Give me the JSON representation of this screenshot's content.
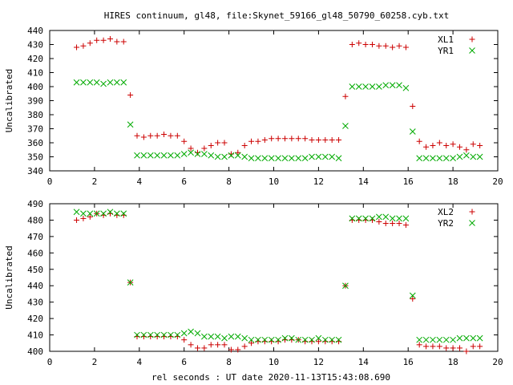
{
  "title": "HIRES continuum, gl48, file:Skynet_59166_gl48_50790_60258.cyb.txt",
  "xlabel": "rel seconds : UT date 2020-11-13T15:43:08.690",
  "chart_data": [
    {
      "type": "scatter",
      "ylabel": "Uncalibrated",
      "xlim": [
        0,
        20
      ],
      "ylim": [
        340,
        440
      ],
      "xticks": [
        "0",
        "2",
        "4",
        "6",
        "8",
        "10",
        "12",
        "14",
        "16",
        "18",
        "20"
      ],
      "yticks": [
        "340",
        "350",
        "360",
        "370",
        "380",
        "390",
        "400",
        "410",
        "420",
        "430",
        "440"
      ],
      "legend_position": "top-right",
      "series": [
        {
          "name": "XL1",
          "color": "#cc0000",
          "marker": "plus",
          "x": [
            1.2,
            1.5,
            1.8,
            2.1,
            2.4,
            2.7,
            3.0,
            3.3,
            3.6,
            3.9,
            4.2,
            4.5,
            4.8,
            5.1,
            5.4,
            5.7,
            6.0,
            6.3,
            6.6,
            6.9,
            7.2,
            7.5,
            7.8,
            8.1,
            8.4,
            8.7,
            9.0,
            9.3,
            9.6,
            9.9,
            10.2,
            10.5,
            10.8,
            11.1,
            11.4,
            11.7,
            12.0,
            12.3,
            12.6,
            12.9,
            13.2,
            13.5,
            13.8,
            14.1,
            14.4,
            14.7,
            15.0,
            15.3,
            15.6,
            15.9,
            16.2,
            16.5,
            16.8,
            17.1,
            17.4,
            17.7,
            18.0,
            18.3,
            18.6,
            18.9,
            19.2
          ],
          "y": [
            428,
            429,
            431,
            433,
            433,
            434,
            432,
            432,
            394,
            365,
            364,
            365,
            365,
            366,
            365,
            365,
            361,
            356,
            353,
            356,
            358,
            360,
            360,
            352,
            353,
            358,
            361,
            361,
            362,
            363,
            363,
            363,
            363,
            363,
            363,
            362,
            362,
            362,
            362,
            362,
            393,
            430,
            431,
            430,
            430,
            429,
            429,
            428,
            429,
            428,
            386,
            361,
            357,
            358,
            360,
            358,
            359,
            357,
            355,
            359,
            358
          ]
        },
        {
          "name": "YR1",
          "color": "#00aa00",
          "marker": "cross",
          "x": [
            1.2,
            1.5,
            1.8,
            2.1,
            2.4,
            2.7,
            3.0,
            3.3,
            3.6,
            3.9,
            4.2,
            4.5,
            4.8,
            5.1,
            5.4,
            5.7,
            6.0,
            6.3,
            6.6,
            6.9,
            7.2,
            7.5,
            7.8,
            8.1,
            8.4,
            8.7,
            9.0,
            9.3,
            9.6,
            9.9,
            10.2,
            10.5,
            10.8,
            11.1,
            11.4,
            11.7,
            12.0,
            12.3,
            12.6,
            12.9,
            13.2,
            13.5,
            13.8,
            14.1,
            14.4,
            14.7,
            15.0,
            15.3,
            15.6,
            15.9,
            16.2,
            16.5,
            16.8,
            17.1,
            17.4,
            17.7,
            18.0,
            18.3,
            18.6,
            18.9,
            19.2
          ],
          "y": [
            403,
            403,
            403,
            403,
            402,
            403,
            403,
            403,
            373,
            351,
            351,
            351,
            351,
            351,
            351,
            351,
            352,
            353,
            352,
            352,
            351,
            350,
            350,
            351,
            351,
            350,
            349,
            349,
            349,
            349,
            349,
            349,
            349,
            349,
            349,
            350,
            350,
            350,
            350,
            349,
            372,
            400,
            400,
            400,
            400,
            400,
            401,
            401,
            401,
            399,
            368,
            349,
            349,
            349,
            349,
            349,
            349,
            350,
            351,
            350,
            350
          ]
        }
      ]
    },
    {
      "type": "scatter",
      "ylabel": "Uncalibrated",
      "xlim": [
        0,
        20
      ],
      "ylim": [
        400,
        490
      ],
      "xticks": [
        "0",
        "2",
        "4",
        "6",
        "8",
        "10",
        "12",
        "14",
        "16",
        "18",
        "20"
      ],
      "yticks": [
        "400",
        "410",
        "420",
        "430",
        "440",
        "450",
        "460",
        "470",
        "480",
        "490"
      ],
      "legend_position": "top-right",
      "series": [
        {
          "name": "XL2",
          "color": "#cc0000",
          "marker": "plus",
          "x": [
            1.2,
            1.5,
            1.8,
            2.1,
            2.4,
            2.7,
            3.0,
            3.3,
            3.6,
            3.9,
            4.2,
            4.5,
            4.8,
            5.1,
            5.4,
            5.7,
            6.0,
            6.3,
            6.6,
            6.9,
            7.2,
            7.5,
            7.8,
            8.1,
            8.4,
            8.7,
            9.0,
            9.3,
            9.6,
            9.9,
            10.2,
            10.5,
            10.8,
            11.1,
            11.4,
            11.7,
            12.0,
            12.3,
            12.6,
            12.9,
            13.2,
            13.5,
            13.8,
            14.1,
            14.4,
            14.7,
            15.0,
            15.3,
            15.6,
            15.9,
            16.2,
            16.5,
            16.8,
            17.1,
            17.4,
            17.7,
            18.0,
            18.3,
            18.6,
            18.9,
            19.2
          ],
          "y": [
            480,
            481,
            482,
            484,
            483,
            484,
            483,
            483,
            442,
            409,
            409,
            409,
            409,
            409,
            409,
            409,
            407,
            404,
            402,
            402,
            404,
            404,
            404,
            401,
            401,
            403,
            405,
            406,
            406,
            406,
            406,
            407,
            407,
            407,
            406,
            406,
            406,
            406,
            406,
            406,
            440,
            480,
            480,
            480,
            480,
            479,
            478,
            478,
            478,
            477,
            432,
            404,
            403,
            403,
            403,
            402,
            402,
            402,
            400,
            403,
            403
          ]
        },
        {
          "name": "YR2",
          "color": "#00aa00",
          "marker": "cross",
          "x": [
            1.2,
            1.5,
            1.8,
            2.1,
            2.4,
            2.7,
            3.0,
            3.3,
            3.6,
            3.9,
            4.2,
            4.5,
            4.8,
            5.1,
            5.4,
            5.7,
            6.0,
            6.3,
            6.6,
            6.9,
            7.2,
            7.5,
            7.8,
            8.1,
            8.4,
            8.7,
            9.0,
            9.3,
            9.6,
            9.9,
            10.2,
            10.5,
            10.8,
            11.1,
            11.4,
            11.7,
            12.0,
            12.3,
            12.6,
            12.9,
            13.2,
            13.5,
            13.8,
            14.1,
            14.4,
            14.7,
            15.0,
            15.3,
            15.6,
            15.9,
            16.2,
            16.5,
            16.8,
            17.1,
            17.4,
            17.7,
            18.0,
            18.3,
            18.6,
            18.9,
            19.2
          ],
          "y": [
            485,
            484,
            484,
            484,
            484,
            485,
            484,
            484,
            442,
            410,
            410,
            410,
            410,
            410,
            410,
            410,
            411,
            412,
            411,
            409,
            409,
            409,
            408,
            409,
            409,
            408,
            407,
            407,
            407,
            407,
            407,
            408,
            408,
            407,
            407,
            407,
            408,
            407,
            407,
            407,
            440,
            481,
            481,
            481,
            481,
            482,
            482,
            481,
            481,
            481,
            434,
            407,
            407,
            407,
            407,
            407,
            407,
            408,
            408,
            408,
            408
          ]
        }
      ]
    }
  ]
}
